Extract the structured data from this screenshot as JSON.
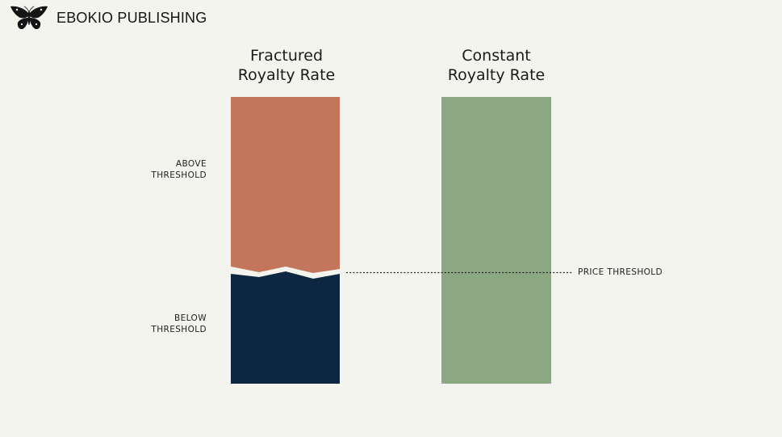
{
  "brand": {
    "name": "EBOKIO PUBLISHING",
    "logo_icon": "butterfly-icon"
  },
  "columns": {
    "fractured": {
      "title_line1": "Fractured",
      "title_line2": "Royalty Rate"
    },
    "constant": {
      "title_line1": "Constant",
      "title_line2": "Royalty Rate"
    }
  },
  "labels": {
    "above_line1": "ABOVE",
    "above_line2": "THRESHOLD",
    "below_line1": "BELOW",
    "below_line2": "THRESHOLD",
    "price_threshold": "PRICE THRESHOLD"
  },
  "colors": {
    "above_threshold": "#c3765c",
    "below_threshold": "#0d2740",
    "constant_rate": "#8ca882",
    "background": "#f4f4ef",
    "threshold_line": "#222222"
  }
}
